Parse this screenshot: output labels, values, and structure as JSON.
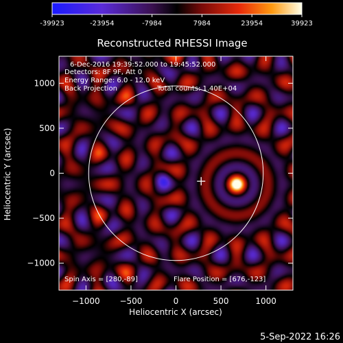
{
  "chart_data": {
    "type": "heatmap",
    "title": "Reconstructed RHESSI Image",
    "xlabel": "Heliocentric X (arcsec)",
    "ylabel": "Heliocentric Y (arcsec)",
    "xlim": [
      -1300,
      1300
    ],
    "ylim": [
      -1300,
      1300
    ],
    "x_ticks": [
      -1000,
      -500,
      0,
      500,
      1000
    ],
    "y_ticks": [
      -1000,
      -500,
      0,
      500,
      1000
    ],
    "colorbar": {
      "min": -39923,
      "max": 39923,
      "tick_labels": [
        "-39923",
        "-23954",
        "-7984",
        "7984",
        "23954",
        "39923"
      ]
    },
    "annotations": {
      "time_range": "6-Dec-2016 19:39:52.000 to 19:45:52.000",
      "detectors": "Detectors: 8F 9F, Att 0",
      "energy_range": "Energy Range: 6.0 - 12.0 keV",
      "method": "Back Projection",
      "total_counts": "Total counts: 1.40E+04",
      "spin_axis": "Spin Axis = [280,-89]",
      "flare_position": "Flare Position = [676,-123]"
    },
    "spin_axis": [
      280,
      -89
    ],
    "flare_position": [
      676,
      -123
    ],
    "solar_limb_radius": 970
  },
  "footer": {
    "timestamp": "5-Sep-2022 16:26"
  }
}
